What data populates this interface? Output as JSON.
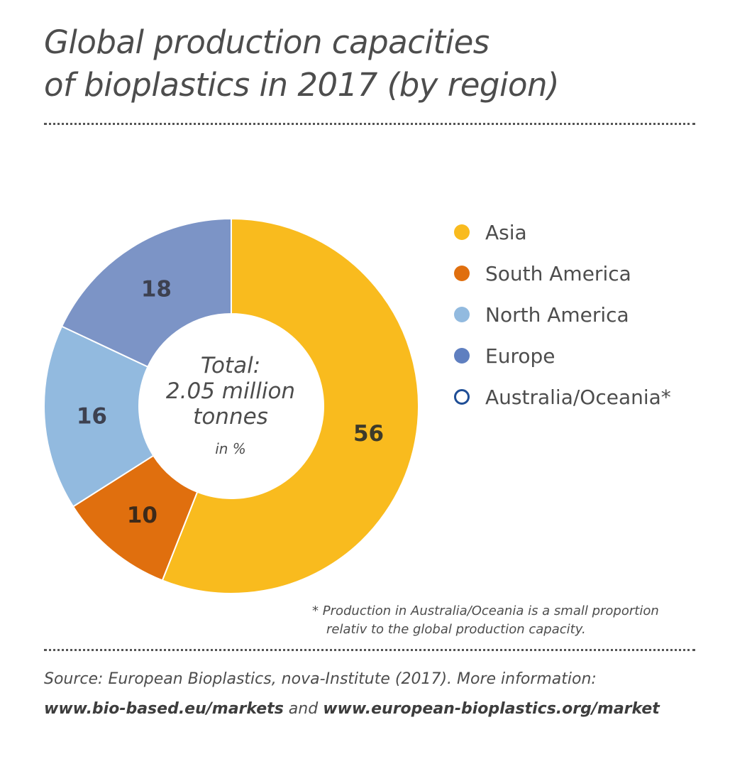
{
  "title_line1": "Global production capacities",
  "title_line2": "of bioplastics in 2017 (by region)",
  "center": {
    "line1": "Total:",
    "line2": "2.05 million",
    "line3": "tonnes",
    "unit": "in %"
  },
  "chart_data": {
    "type": "pie",
    "donut": true,
    "categories": [
      "Asia",
      "South America",
      "North America",
      "Europe",
      "Australia/Oceania*"
    ],
    "values": [
      56,
      10,
      16,
      18,
      0
    ],
    "value_labels": [
      "56",
      "10",
      "16",
      "18",
      ""
    ],
    "colors": [
      "#f9bb1e",
      "#e06f0e",
      "#92badf",
      "#7c94c6",
      "#ffffff"
    ],
    "legend_colors": [
      "#f9bb1e",
      "#e06f0e",
      "#92badf",
      "#5f7fc0",
      "#ffffff"
    ],
    "legend_border": [
      "",
      "",
      "",
      "",
      "#1f4e96"
    ],
    "label_colors": [
      "#3d3a2a",
      "#3d2a1a",
      "#3d4150",
      "#3d4150",
      ""
    ],
    "start_angle_deg": 0,
    "legend_placement": "right"
  },
  "footnote": {
    "line1": "* Production in Australia/Oceania is a small proportion",
    "line2": "relativ to the global production capacity."
  },
  "source": {
    "line1": "Source: European Bioplastics, nova-Institute (2017). More information:",
    "link1": "www.bio-based.eu/markets",
    "and": " and ",
    "link2": "www.european-bioplastics.org/market"
  }
}
